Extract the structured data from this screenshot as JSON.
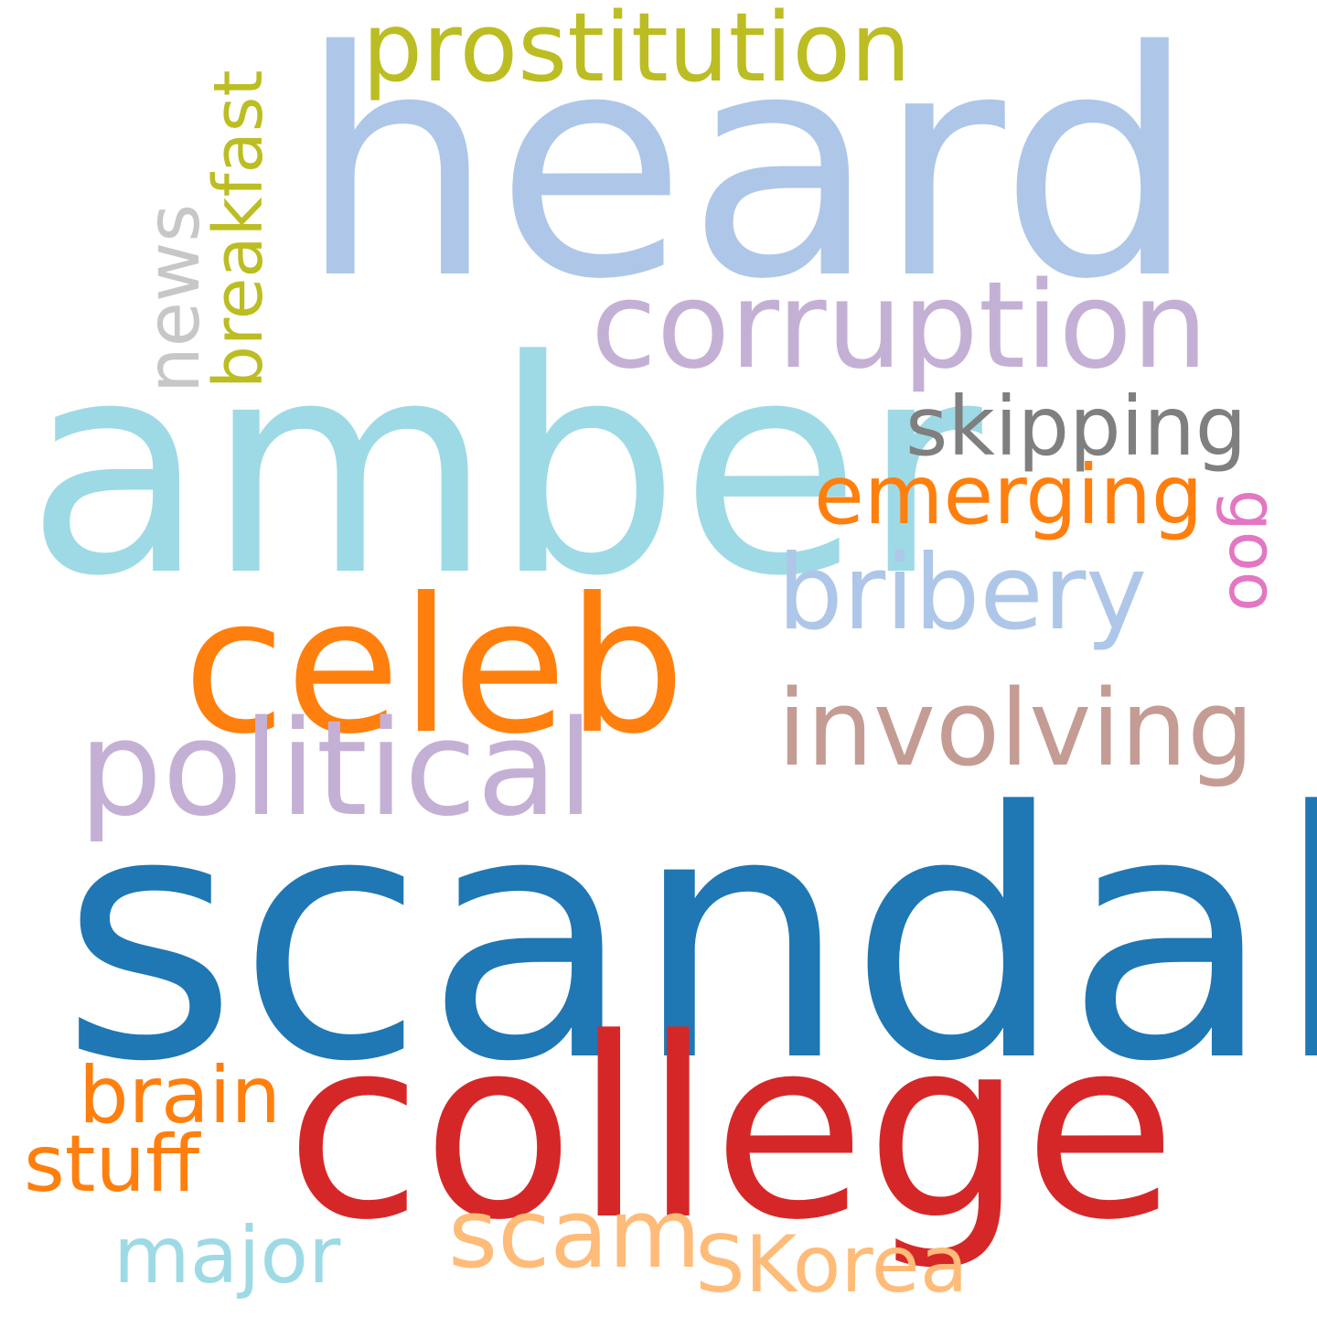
{
  "words": [
    {
      "text": "scandal",
      "color": "#1f77b4",
      "orientation": "horizontal"
    },
    {
      "text": "heard",
      "color": "#aec7e8",
      "orientation": "horizontal"
    },
    {
      "text": "amber",
      "color": "#9edae5",
      "orientation": "horizontal"
    },
    {
      "text": "college",
      "color": "#d62728",
      "orientation": "horizontal"
    },
    {
      "text": "celeb",
      "color": "#ff7f0e",
      "orientation": "horizontal"
    },
    {
      "text": "political",
      "color": "#c5b0d5",
      "orientation": "horizontal"
    },
    {
      "text": "corruption",
      "color": "#c5b0d5",
      "orientation": "horizontal"
    },
    {
      "text": "prostitution",
      "color": "#bcbd22",
      "orientation": "horizontal"
    },
    {
      "text": "involving",
      "color": "#c49c94",
      "orientation": "horizontal"
    },
    {
      "text": "bribery",
      "color": "#aec7e8",
      "orientation": "horizontal"
    },
    {
      "text": "skipping",
      "color": "#7f7f7f",
      "orientation": "horizontal"
    },
    {
      "text": "emerging",
      "color": "#ff7f0e",
      "orientation": "horizontal"
    },
    {
      "text": "news",
      "color": "#c7c7c7",
      "orientation": "vertical"
    },
    {
      "text": "breakfast",
      "color": "#bcbd22",
      "orientation": "vertical"
    },
    {
      "text": "goo",
      "color": "#e377c2",
      "orientation": "vertical-down"
    },
    {
      "text": "brain",
      "color": "#ff7f0e",
      "orientation": "horizontal"
    },
    {
      "text": "stuff",
      "color": "#ff7f0e",
      "orientation": "horizontal"
    },
    {
      "text": "scam",
      "color": "#ffbb78",
      "orientation": "horizontal"
    },
    {
      "text": "major",
      "color": "#9edae5",
      "orientation": "horizontal"
    },
    {
      "text": "SKorea",
      "color": "#ffbb78",
      "orientation": "horizontal"
    }
  ]
}
